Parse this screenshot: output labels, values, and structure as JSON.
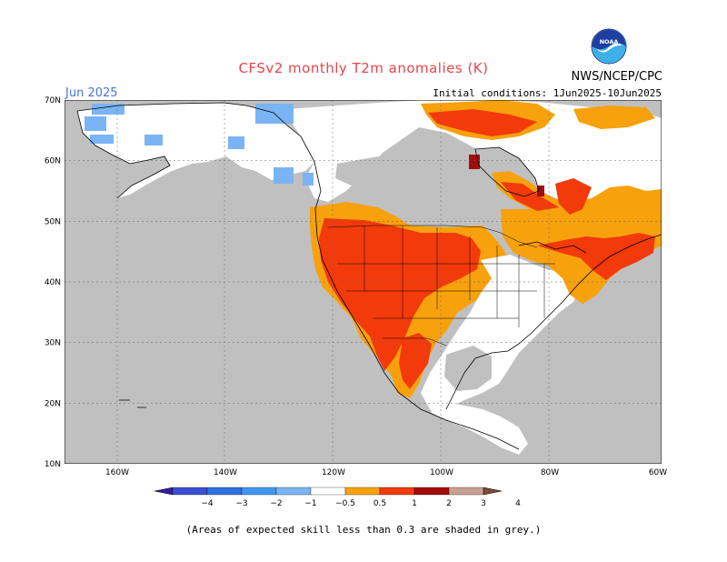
{
  "title": "CFSv2 monthly T2m anomalies (K)",
  "month": "Jun 2025",
  "initial_conditions": "Initial conditions: 1Jun2025-10Jun2025",
  "agency": "NWS/NCEP/CPC",
  "logo_text": "NOAA",
  "footnote": "(Areas of expected skill less than 0.3 are shaded in grey.)",
  "lat_labels": [
    "70N",
    "60N",
    "50N",
    "40N",
    "30N",
    "20N",
    "10N"
  ],
  "lon_labels": [
    "160W",
    "140W",
    "120W",
    "100W",
    "80W",
    "60W"
  ],
  "colorbar": {
    "labels": [
      "−4",
      "−3",
      "−2",
      "−1",
      "−0.5",
      "0.5",
      "1",
      "2",
      "3",
      "4"
    ],
    "colors": [
      "#3a1a9e",
      "#3a4ed0",
      "#2f6fe0",
      "#4196ef",
      "#7ab4f4",
      "#ffffff",
      "#f7a10c",
      "#f33a0b",
      "#a30c0c",
      "#c9a092",
      "#7a4a3a"
    ]
  },
  "colors": {
    "grey": "#c0c0c0",
    "orange": "#f7a10c",
    "red_orange": "#f33a0b",
    "dark_red": "#a30c0c",
    "light_blue": "#7ab4f4",
    "white": "#ffffff"
  }
}
